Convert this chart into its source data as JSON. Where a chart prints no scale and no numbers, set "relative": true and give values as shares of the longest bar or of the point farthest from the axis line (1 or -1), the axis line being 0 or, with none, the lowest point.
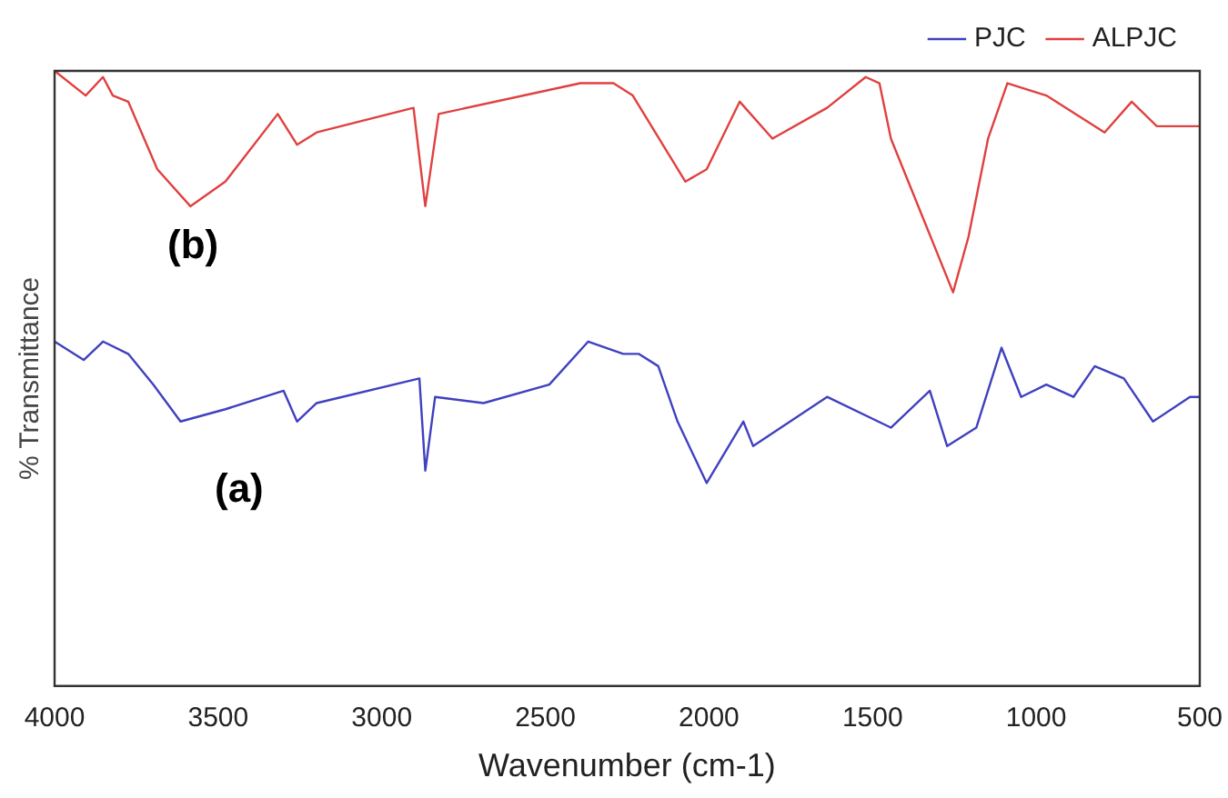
{
  "chart_data": {
    "type": "line",
    "relative": true,
    "xlabel": "Wavenumber (cm-1)",
    "ylabel": "% Transmittance",
    "xlim": [
      4000,
      500
    ],
    "xticks": [
      4000,
      3500,
      3000,
      2500,
      2000,
      1500,
      1000,
      500
    ],
    "grid": false,
    "legend": "top right",
    "marker": "none",
    "line_style": "solid",
    "annotations": [
      "(b)",
      "(a)"
    ],
    "series": [
      {
        "name": "PJC",
        "color": "#4040c0",
        "x": [
          4000,
          3911,
          3852,
          3775,
          3698,
          3615,
          3478,
          3300,
          3259,
          3199,
          2885,
          2867,
          2837,
          2689,
          2488,
          2369,
          2262,
          2215,
          2155,
          2096,
          2007,
          1895,
          1865,
          1639,
          1444,
          1325,
          1272,
          1183,
          1106,
          1046,
          969,
          886,
          821,
          732,
          643,
          530,
          500
        ],
        "values": [
          0.56,
          0.53,
          0.56,
          0.54,
          0.49,
          0.43,
          0.45,
          0.48,
          0.43,
          0.46,
          0.5,
          0.35,
          0.47,
          0.46,
          0.49,
          0.56,
          0.54,
          0.54,
          0.52,
          0.43,
          0.33,
          0.43,
          0.39,
          0.47,
          0.42,
          0.48,
          0.39,
          0.42,
          0.55,
          0.47,
          0.49,
          0.47,
          0.52,
          0.5,
          0.43,
          0.47,
          0.47
        ]
      },
      {
        "name": "ALPJC",
        "color": "#e04040",
        "x": [
          4000,
          3905,
          3852,
          3822,
          3775,
          3686,
          3585,
          3478,
          3318,
          3259,
          3199,
          2903,
          2867,
          2826,
          2393,
          2292,
          2233,
          2072,
          2007,
          1906,
          1806,
          1639,
          1521,
          1479,
          1444,
          1254,
          1207,
          1147,
          1088,
          969,
          791,
          708,
          631,
          530,
          500
        ],
        "values": [
          1,
          0.96,
          0.99,
          0.96,
          0.95,
          0.84,
          0.78,
          0.82,
          0.93,
          0.88,
          0.9,
          0.94,
          0.78,
          0.93,
          0.98,
          0.98,
          0.96,
          0.82,
          0.84,
          0.95,
          0.89,
          0.94,
          0.99,
          0.98,
          0.89,
          0.64,
          0.73,
          0.89,
          0.98,
          0.96,
          0.9,
          0.95,
          0.91,
          0.91,
          0.91
        ]
      }
    ]
  }
}
